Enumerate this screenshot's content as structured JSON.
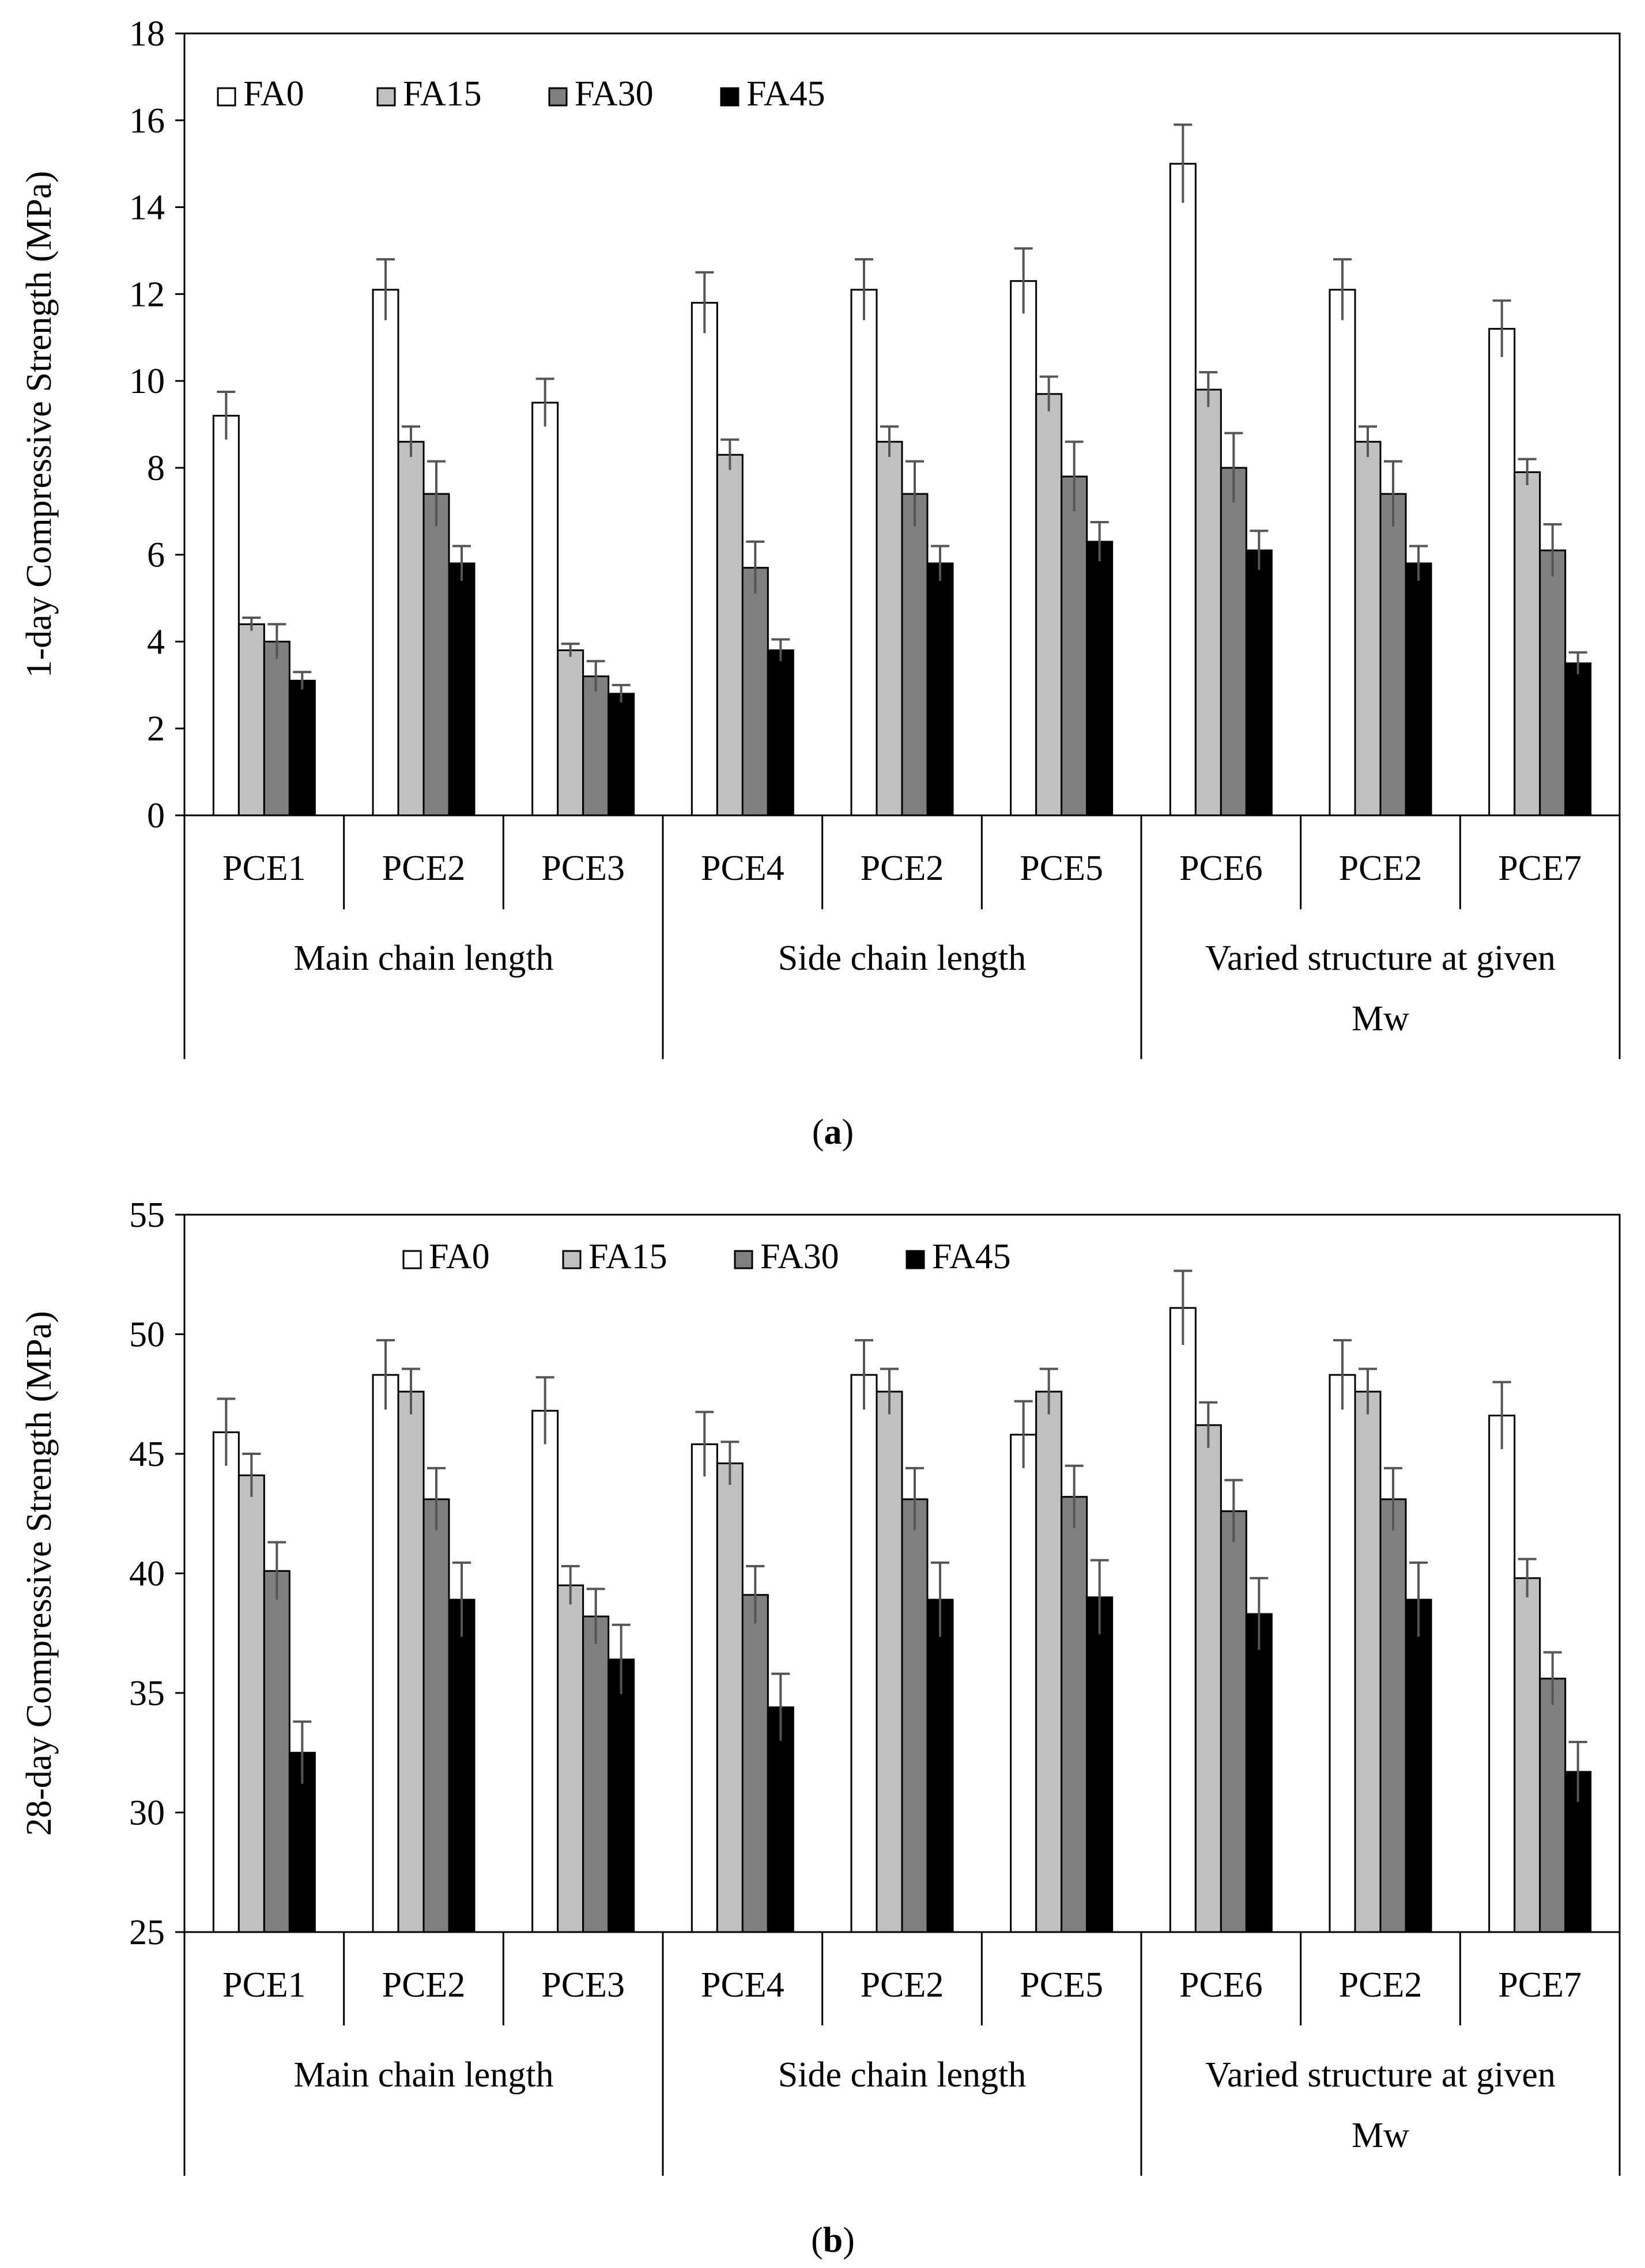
{
  "chart_data": [
    {
      "type": "bar",
      "panel_label": "(a)",
      "title": "",
      "ylabel": "1-day Compressive Strength (MPa)",
      "ylim": [
        0,
        18
      ],
      "yticks": [
        0,
        2,
        4,
        6,
        8,
        10,
        12,
        14,
        16,
        18
      ],
      "categories": [
        "PCE1",
        "PCE2",
        "PCE3",
        "PCE4",
        "PCE2",
        "PCE5",
        "PCE6",
        "PCE2",
        "PCE7"
      ],
      "groups": [
        {
          "label": "Main chain length",
          "span": [
            0,
            2
          ]
        },
        {
          "label": "Side chain length",
          "span": [
            3,
            5
          ]
        },
        {
          "label": "Varied structure at given Mw",
          "span": [
            6,
            8
          ]
        }
      ],
      "legend_position": "top-left",
      "series": [
        {
          "name": "FA0",
          "color": "#ffffff",
          "values": [
            9.2,
            12.1,
            9.5,
            11.8,
            12.1,
            12.3,
            15.0,
            12.1,
            11.2
          ],
          "errors": [
            0.55,
            0.7,
            0.55,
            0.7,
            0.7,
            0.75,
            0.9,
            0.7,
            0.65
          ]
        },
        {
          "name": "FA15",
          "color": "#c0c0c0",
          "values": [
            4.4,
            8.6,
            3.8,
            8.3,
            8.6,
            9.7,
            9.8,
            8.6,
            7.9
          ],
          "errors": [
            0.15,
            0.35,
            0.15,
            0.35,
            0.35,
            0.4,
            0.4,
            0.35,
            0.3
          ]
        },
        {
          "name": "FA30",
          "color": "#808080",
          "values": [
            4.0,
            7.4,
            3.2,
            5.7,
            7.4,
            7.8,
            8.0,
            7.4,
            6.1
          ],
          "errors": [
            0.4,
            0.75,
            0.35,
            0.6,
            0.75,
            0.8,
            0.8,
            0.75,
            0.6
          ]
        },
        {
          "name": "FA45",
          "color": "#000000",
          "values": [
            3.1,
            5.8,
            2.8,
            3.8,
            5.8,
            6.3,
            6.1,
            5.8,
            3.5
          ],
          "errors": [
            0.2,
            0.4,
            0.2,
            0.25,
            0.4,
            0.45,
            0.45,
            0.4,
            0.25
          ]
        }
      ]
    },
    {
      "type": "bar",
      "panel_label": "(b)",
      "title": "",
      "ylabel": "28-day Compressive Strength (MPa)",
      "ylim": [
        25,
        55
      ],
      "yticks": [
        25,
        30,
        35,
        40,
        45,
        50,
        55
      ],
      "categories": [
        "PCE1",
        "PCE2",
        "PCE3",
        "PCE4",
        "PCE2",
        "PCE5",
        "PCE6",
        "PCE2",
        "PCE7"
      ],
      "groups": [
        {
          "label": "Main chain length",
          "span": [
            0,
            2
          ]
        },
        {
          "label": "Side chain length",
          "span": [
            3,
            5
          ]
        },
        {
          "label": "Varied structure at given Mw",
          "span": [
            6,
            8
          ]
        }
      ],
      "legend_position": "top-center",
      "series": [
        {
          "name": "FA0",
          "color": "#ffffff",
          "values": [
            45.9,
            48.3,
            46.8,
            45.4,
            48.3,
            45.8,
            51.1,
            48.3,
            46.6
          ],
          "errors": [
            1.4,
            1.45,
            1.4,
            1.35,
            1.45,
            1.4,
            1.55,
            1.45,
            1.4
          ]
        },
        {
          "name": "FA15",
          "color": "#c0c0c0",
          "values": [
            44.1,
            47.6,
            39.5,
            44.6,
            47.6,
            47.6,
            46.2,
            47.6,
            39.8
          ],
          "errors": [
            0.9,
            0.95,
            0.8,
            0.9,
            0.95,
            0.95,
            0.95,
            0.95,
            0.8
          ]
        },
        {
          "name": "FA30",
          "color": "#808080",
          "values": [
            40.1,
            43.1,
            38.2,
            39.1,
            43.1,
            43.2,
            42.6,
            43.1,
            35.6
          ],
          "errors": [
            1.2,
            1.3,
            1.15,
            1.2,
            1.3,
            1.3,
            1.3,
            1.3,
            1.1
          ]
        },
        {
          "name": "FA45",
          "color": "#000000",
          "values": [
            32.5,
            38.9,
            36.4,
            34.4,
            38.9,
            39.0,
            38.3,
            38.9,
            31.7
          ],
          "errors": [
            1.3,
            1.55,
            1.45,
            1.4,
            1.55,
            1.55,
            1.5,
            1.55,
            1.25
          ]
        }
      ]
    }
  ]
}
